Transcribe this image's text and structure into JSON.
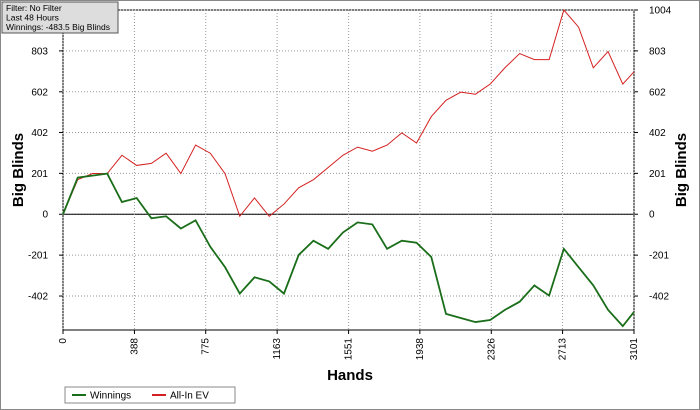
{
  "chart_data": {
    "type": "line",
    "info": [
      "Filter: No Filter",
      "Last  48 Hours",
      "Winnings: -483.5 Big Blinds"
    ],
    "x_label": "Hands",
    "y_label": "Big Blinds",
    "y2_label": "Big Blinds",
    "x": [
      0,
      80,
      160,
      240,
      320,
      400,
      480,
      560,
      640,
      720,
      800,
      880,
      960,
      1040,
      1120,
      1200,
      1280,
      1360,
      1440,
      1520,
      1600,
      1680,
      1760,
      1840,
      1920,
      2000,
      2080,
      2160,
      2240,
      2320,
      2400,
      2480,
      2560,
      2640,
      2720,
      2800,
      2880,
      2960,
      3040,
      3101
    ],
    "series": [
      {
        "name": "Winnings",
        "color": "#1a6e1a",
        "values": [
          0,
          180,
          190,
          200,
          60,
          80,
          -20,
          -10,
          -70,
          -30,
          -160,
          -260,
          -390,
          -310,
          -330,
          -390,
          -200,
          -130,
          -170,
          -90,
          -40,
          -50,
          -170,
          -130,
          -140,
          -210,
          -490,
          -510,
          -530,
          -520,
          -470,
          -430,
          -350,
          -400,
          -170,
          -260,
          -350,
          -470,
          -550,
          -480
        ]
      },
      {
        "name": "All-In EV",
        "color": "#d42020",
        "values": [
          0,
          170,
          200,
          200,
          290,
          240,
          250,
          300,
          200,
          340,
          300,
          200,
          -10,
          80,
          -10,
          50,
          130,
          170,
          230,
          290,
          330,
          310,
          340,
          400,
          350,
          480,
          560,
          600,
          590,
          640,
          720,
          790,
          760,
          760,
          1004,
          920,
          720,
          800,
          640,
          700
        ]
      }
    ],
    "xlim": [
      0,
      3101
    ],
    "xticks": [
      0,
      388,
      775,
      1163,
      1551,
      1938,
      2326,
      2713,
      3101
    ],
    "ylim": [
      -569,
      1004
    ],
    "yticks": [
      -402,
      -201,
      0,
      201,
      402,
      602,
      803,
      1004
    ],
    "grid": true,
    "legend": "bottom-left"
  }
}
